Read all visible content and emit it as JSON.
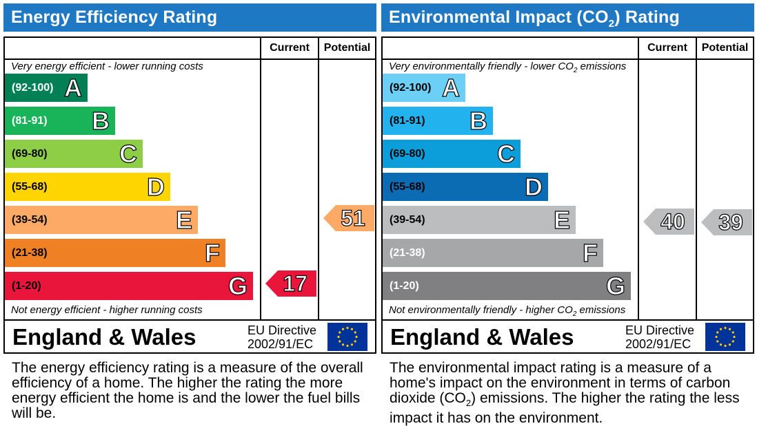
{
  "panels": {
    "energy": {
      "title": "Energy Efficiency Rating",
      "col_current": "Current",
      "col_potential": "Potential",
      "top_note": "Very energy efficient - lower running costs",
      "bottom_note": "Not energy efficient - higher running costs",
      "region": "England & Wales",
      "directive_line1": "EU Directive",
      "directive_line2": "2002/91/EC",
      "description": "The energy efficiency rating is a measure of the overall efficiency of a home. The higher the rating the more energy efficient the home is and the lower the fuel bills will be."
    },
    "environment": {
      "title_prefix": "Environmental Impact (CO",
      "title_sub": "2",
      "title_suffix": ") Rating",
      "col_current": "Current",
      "col_potential": "Potential",
      "top_note_prefix": "Very environmentally friendly - lower CO",
      "top_note_sub": "2",
      "top_note_suffix": " emissions",
      "bottom_note_prefix": "Not environmentally friendly - higher CO",
      "bottom_note_sub": "2",
      "bottom_note_suffix": " emissions",
      "region": "England & Wales",
      "directive_line1": "EU Directive",
      "directive_line2": "2002/91/EC",
      "description_prefix": "The environmental impact rating is a measure of a home's impact on the environment in terms of carbon dioxide (CO",
      "description_sub": "2",
      "description_suffix": ") emissions. The higher the rating the less impact it has on the environment."
    }
  },
  "chart_data": [
    {
      "type": "bar",
      "title": "Energy Efficiency Rating",
      "categories": [
        "A",
        "B",
        "C",
        "D",
        "E",
        "F",
        "G"
      ],
      "ranges": [
        "(92-100)",
        "(81-91)",
        "(69-80)",
        "(55-68)",
        "(39-54)",
        "(21-38)",
        "(1-20)"
      ],
      "colors": [
        "#008054",
        "#19b459",
        "#8dce46",
        "#ffd500",
        "#fcaa65",
        "#ef8023",
        "#e9153b"
      ],
      "range_text_colors": [
        "#ffffff",
        "#ffffff",
        "#000000",
        "#000000",
        "#000000",
        "#000000",
        "#000000"
      ],
      "current": {
        "value": 17,
        "band": "G",
        "color": "#e9153b"
      },
      "potential": {
        "value": 51,
        "band": "E",
        "color": "#fcaa65"
      }
    },
    {
      "type": "bar",
      "title": "Environmental Impact (CO2) Rating",
      "categories": [
        "A",
        "B",
        "C",
        "D",
        "E",
        "F",
        "G"
      ],
      "ranges": [
        "(92-100)",
        "(81-91)",
        "(69-80)",
        "(55-68)",
        "(39-54)",
        "(21-38)",
        "(1-20)"
      ],
      "colors": [
        "#6ccff6",
        "#22b3ee",
        "#0c9edb",
        "#0b6cb4",
        "#bbbdbf",
        "#a6a7a9",
        "#808083"
      ],
      "range_text_colors": [
        "#000000",
        "#000000",
        "#000000",
        "#000000",
        "#000000",
        "#ffffff",
        "#ffffff"
      ],
      "current": {
        "value": 40,
        "band": "E",
        "color": "#bbbdbf"
      },
      "potential": {
        "value": 39,
        "band": "E",
        "color": "#bbbdbf"
      }
    }
  ]
}
